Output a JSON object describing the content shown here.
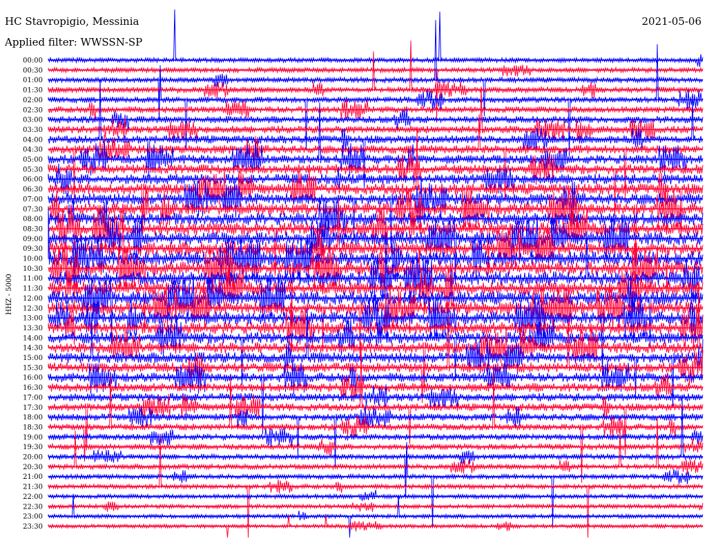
{
  "header": {
    "station": "HC Stavropigio, Messinia",
    "date": "2021-05-06",
    "filter": "Applied filter: WWSSN-SP"
  },
  "chart_data": {
    "type": "line",
    "channel_label": "HHZ - 5000",
    "rows": [
      "00:00",
      "00:30",
      "01:00",
      "01:30",
      "02:00",
      "02:30",
      "03:00",
      "03:30",
      "04:00",
      "04:30",
      "05:00",
      "05:30",
      "06:00",
      "06:30",
      "07:00",
      "07:30",
      "08:00",
      "08:30",
      "09:00",
      "09:30",
      "10:00",
      "10:30",
      "11:00",
      "11:30",
      "12:00",
      "12:30",
      "13:00",
      "13:30",
      "14:00",
      "14:30",
      "15:00",
      "15:30",
      "16:00",
      "16:30",
      "17:00",
      "17:30",
      "18:00",
      "18:30",
      "19:00",
      "19:30",
      "20:00",
      "20:30",
      "21:00",
      "21:30",
      "22:00",
      "22:30",
      "23:00",
      "23:30"
    ],
    "colors": [
      "#0000ff",
      "#ff0033"
    ],
    "note_series": "synthetic seismic trace"
  }
}
